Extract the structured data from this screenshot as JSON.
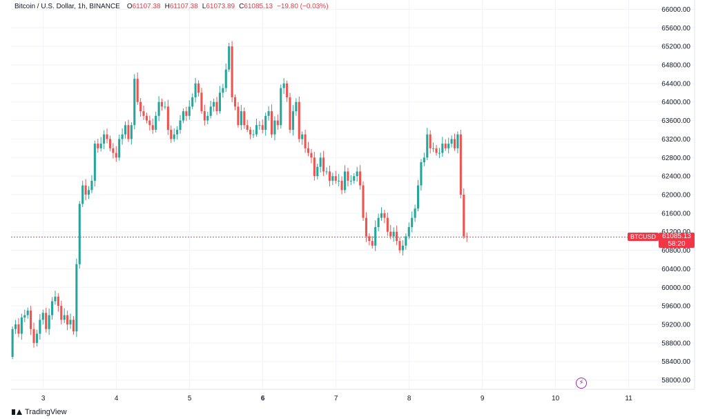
{
  "header": {
    "title": "Bitcoin / U.S. Dollar, 1h, BINANCE",
    "open_label": "O",
    "open": "61107.38",
    "high_label": "H",
    "high": "61107.38",
    "low_label": "L",
    "low": "61073.89",
    "close_label": "C",
    "close": "61085.13",
    "change": "−19.80 (−0.03%)"
  },
  "price_tag": {
    "symbol": "BTCUSD",
    "price": "61085.13",
    "countdown": "58:20"
  },
  "footer": {
    "brand": "TradingView",
    "logo_icon": "tradingview-logo-icon"
  },
  "misc": {
    "flash_icon": "lightning-icon"
  },
  "colors": {
    "up": "#26a69a",
    "down": "#ef5350",
    "grid": "#f0f3fa",
    "price_line": "#f23645"
  },
  "chart_data": {
    "type": "candlestick",
    "title": "Bitcoin / U.S. Dollar, 1h, BINANCE",
    "y_axis": {
      "side": "right",
      "ylim": [
        57800,
        66200
      ],
      "ticks": [
        58000,
        58400,
        58800,
        59200,
        59600,
        60000,
        60400,
        60800,
        61200,
        61600,
        62000,
        62400,
        62800,
        63200,
        63600,
        64000,
        64400,
        64800,
        65200,
        65600,
        66000
      ],
      "tick_labels": [
        "58000.00",
        "58400.00",
        "58800.00",
        "59200.00",
        "59600.00",
        "60000.00",
        "60400.00",
        "60800.00",
        "61200.00",
        "61600.00",
        "62000.00",
        "62400.00",
        "62800.00",
        "63200.00",
        "63600.00",
        "64000.00",
        "64400.00",
        "64800.00",
        "65200.00",
        "65600.00",
        "66000.00"
      ]
    },
    "x_axis": {
      "ticks": [
        {
          "label": "3",
          "day": 3
        },
        {
          "label": "4",
          "day": 4
        },
        {
          "label": "5",
          "day": 5
        },
        {
          "label": "6",
          "day": 6,
          "bold": true
        },
        {
          "label": "7",
          "day": 7
        },
        {
          "label": "8",
          "day": 8
        },
        {
          "label": "9",
          "day": 9
        },
        {
          "label": "10",
          "day": 10
        },
        {
          "label": "11",
          "day": 11
        }
      ],
      "xlim_days": [
        2.56,
        11.9
      ]
    },
    "grid": true,
    "last_price": 61085.13,
    "series_start": {
      "day": 2.58,
      "open": 58500,
      "hours_per_bar": 1
    },
    "closes": [
      59100,
      59200,
      59000,
      59350,
      59400,
      59500,
      59100,
      58800,
      59000,
      59300,
      59450,
      59100,
      59400,
      59700,
      59800,
      59600,
      59300,
      59400,
      59200,
      59300,
      59050,
      60500,
      61800,
      62200,
      62000,
      62100,
      62300,
      63100,
      63000,
      63100,
      63300,
      63200,
      63000,
      62900,
      62800,
      63200,
      63300,
      63500,
      63200,
      63500,
      64500,
      64000,
      63800,
      63700,
      63600,
      63500,
      63400,
      63700,
      64000,
      63900,
      63900,
      63400,
      63200,
      63300,
      63400,
      63600,
      63800,
      63700,
      63900,
      64100,
      64400,
      64200,
      63800,
      63600,
      63700,
      63900,
      64000,
      63800,
      64200,
      64300,
      64700,
      65200,
      64100,
      63900,
      63500,
      63800,
      63500,
      63400,
      63300,
      63300,
      63500,
      63500,
      63400,
      63700,
      63800,
      63300,
      63600,
      63500,
      64300,
      64400,
      64100,
      63400,
      63800,
      64000,
      63200,
      63300,
      63000,
      62900,
      62800,
      62400,
      62600,
      62800,
      62500,
      62500,
      62300,
      62400,
      62300,
      62300,
      62100,
      62500,
      62300,
      62300,
      62400,
      62500,
      62200,
      61500,
      61100,
      61000,
      60900,
      61300,
      61500,
      61600,
      61500,
      61200,
      61100,
      61200,
      61000,
      60800,
      60900,
      61100,
      61300,
      61500,
      61700,
      62200,
      62700,
      62800,
      63300,
      63000,
      63000,
      62900,
      62900,
      63100,
      63000,
      63100,
      63200,
      63000,
      63300,
      62000,
      61100,
      61085.13
    ]
  }
}
